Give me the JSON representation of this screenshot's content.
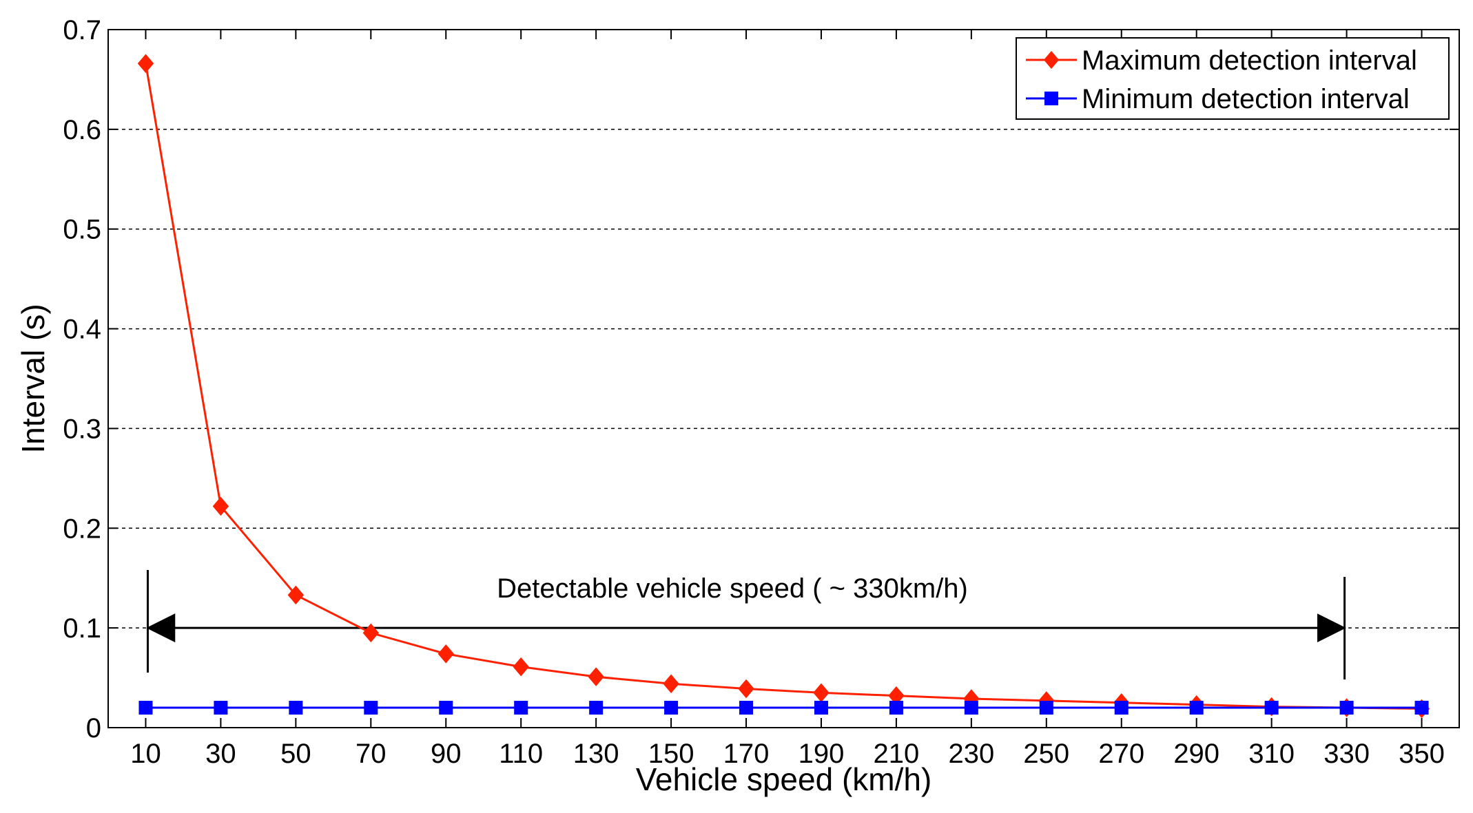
{
  "chart_data": {
    "type": "line",
    "title": "",
    "xlabel": "Vehicle speed (km/h)",
    "ylabel": "Interval (s)",
    "x": [
      10,
      30,
      50,
      70,
      90,
      110,
      130,
      150,
      170,
      190,
      210,
      230,
      250,
      270,
      290,
      310,
      330,
      350
    ],
    "xlim": [
      0,
      360
    ],
    "ylim": [
      0,
      0.7
    ],
    "xticks": [
      "10",
      "30",
      "50",
      "70",
      "90",
      "110",
      "130",
      "150",
      "170",
      "190",
      "210",
      "230",
      "250",
      "270",
      "290",
      "310",
      "330",
      "350"
    ],
    "yticks": [
      "0",
      "0.1",
      "0.2",
      "0.3",
      "0.4",
      "0.5",
      "0.6",
      "0.7"
    ],
    "grid": "horizontal-dotted",
    "legend_position": "top-right",
    "series": [
      {
        "name": "Maximum detection interval",
        "color": "#ff2000",
        "marker": "diamond",
        "values": [
          0.666,
          0.222,
          0.133,
          0.095,
          0.074,
          0.061,
          0.051,
          0.044,
          0.039,
          0.035,
          0.032,
          0.029,
          0.027,
          0.025,
          0.023,
          0.021,
          0.02,
          0.019
        ]
      },
      {
        "name": "Minimum detection interval",
        "color": "#0000ff",
        "marker": "square",
        "values": [
          0.02,
          0.02,
          0.02,
          0.02,
          0.02,
          0.02,
          0.02,
          0.02,
          0.02,
          0.02,
          0.02,
          0.02,
          0.02,
          0.02,
          0.02,
          0.02,
          0.02,
          0.02
        ]
      }
    ],
    "annotations": [
      {
        "text": "Detectable vehicle speed ( ~ 330km/h)",
        "type": "double-arrow",
        "x_start": 10,
        "x_end": 330,
        "y": 0.1
      }
    ]
  }
}
